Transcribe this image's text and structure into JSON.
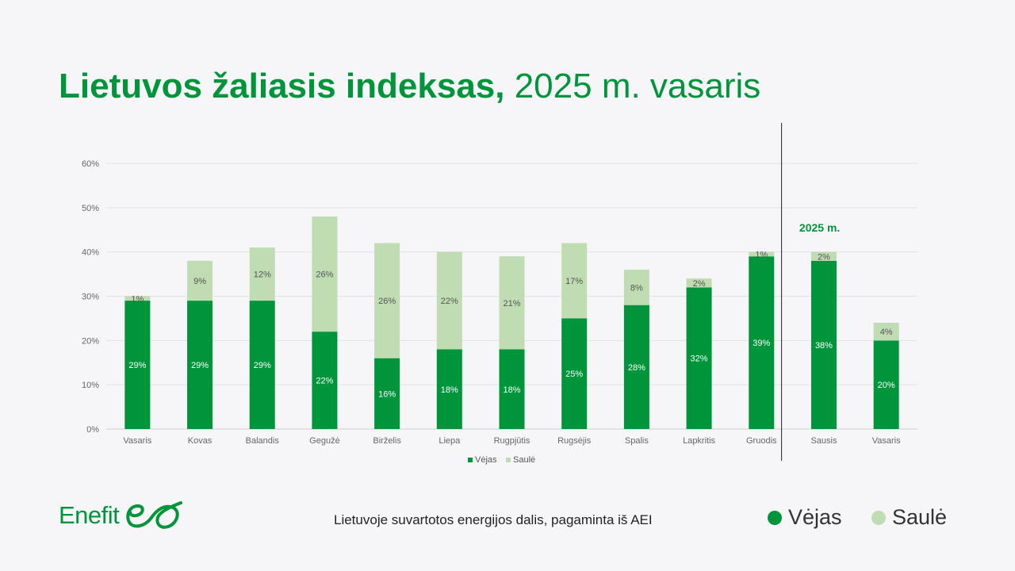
{
  "header": {
    "title_bold": "Lietuvos žaliasis indeksas,",
    "title_rest": " 2025 m. vasaris"
  },
  "chart_data": {
    "type": "bar",
    "stacked": true,
    "categories": [
      "Vasaris",
      "Kovas",
      "Balandis",
      "Gegužė",
      "Birželis",
      "Liepa",
      "Rugpjūtis",
      "Rugsėjis",
      "Spalis",
      "Lapkritis",
      "Gruodis",
      "Sausis",
      "Vasaris"
    ],
    "series": [
      {
        "name": "Vėjas",
        "color": "#00953a",
        "values": [
          29,
          29,
          29,
          22,
          16,
          18,
          18,
          25,
          28,
          32,
          39,
          38,
          20
        ]
      },
      {
        "name": "Saulė",
        "color": "#bfdcb3",
        "values": [
          1,
          9,
          12,
          26,
          26,
          22,
          21,
          17,
          8,
          2,
          1,
          2,
          4
        ]
      }
    ],
    "data_labels": {
      "Vėjas": [
        "29%",
        "29%",
        "29%",
        "22%",
        "16%",
        "18%",
        "18%",
        "25%",
        "28%",
        "32%",
        "39%",
        "38%",
        "20%"
      ],
      "Saulė": [
        "1%",
        "9%",
        "12%",
        "26%",
        "26%",
        "22%",
        "21%",
        "17%",
        "8%",
        "2%",
        "1%",
        "2%",
        "4%"
      ]
    },
    "y_ticks": [
      "0%",
      "10%",
      "20%",
      "30%",
      "40%",
      "50%",
      "60%"
    ],
    "ylim": [
      0,
      60
    ],
    "grid": true,
    "divider_after_index": 10,
    "divider_label": "2025 m.",
    "legend_position": "bottom",
    "legend": [
      "Vėjas",
      "Saulė"
    ]
  },
  "footer": {
    "brand": "Enefit",
    "note": "Lietuvoje suvartotos energijos dalis, pagaminta iš AEI",
    "legend": [
      {
        "label": "Vėjas",
        "color": "#00953a"
      },
      {
        "label": "Saulė",
        "color": "#bfdcb3"
      }
    ]
  }
}
